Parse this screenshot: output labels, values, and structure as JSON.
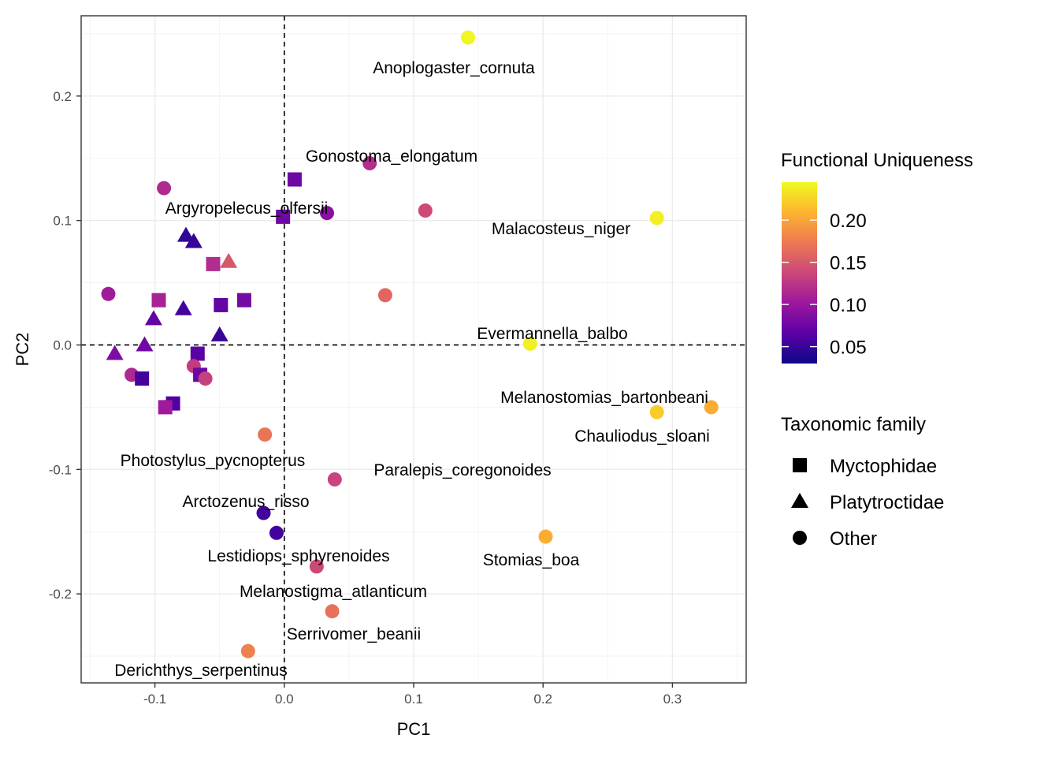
{
  "chart_data": {
    "type": "scatter",
    "xlabel": "PC1",
    "ylabel": "PC2",
    "xlim": [
      -0.157,
      0.357
    ],
    "ylim": [
      -0.2715,
      0.2645
    ],
    "x_ticks": [
      -0.1,
      0.0,
      0.1,
      0.2,
      0.3
    ],
    "x_tick_labels": [
      "-0.1",
      "0.0",
      "0.1",
      "0.2",
      "0.3"
    ],
    "y_ticks": [
      -0.2,
      -0.1,
      0.0,
      0.1,
      0.2
    ],
    "y_tick_labels": [
      "-0.2",
      "-0.1",
      "0.0",
      "0.1",
      "0.2"
    ],
    "grid": true,
    "reference_lines": {
      "x": 0,
      "y": 0,
      "style": "dashed"
    },
    "color_scale": {
      "title": "Functional Uniqueness",
      "palette": "plasma",
      "min": 0.03,
      "max": 0.245,
      "stops": [
        "#0d0887",
        "#5c01a6",
        "#9c179e",
        "#cc4778",
        "#ed7953",
        "#fdb42f",
        "#f0f921"
      ],
      "ticks": [
        0.05,
        0.1,
        0.15,
        0.2
      ],
      "tick_labels": [
        "0.05",
        "0.10",
        "0.15",
        "0.20"
      ]
    },
    "shape_legend": {
      "title": "Taxonomic family",
      "items": [
        {
          "label": "Myctophidae",
          "shape": "square"
        },
        {
          "label": "Platytroctidae",
          "shape": "triangle"
        },
        {
          "label": "Other",
          "shape": "circle"
        }
      ]
    },
    "legend_position": "right",
    "points": [
      {
        "x": 0.142,
        "y": 0.247,
        "u": 0.243,
        "shape": "circle",
        "label": "Anoplogaster_cornuta"
      },
      {
        "x": 0.066,
        "y": 0.146,
        "u": 0.118,
        "shape": "circle",
        "label": "Gonostoma_elongatum"
      },
      {
        "x": 0.008,
        "y": 0.133,
        "u": 0.075,
        "shape": "square"
      },
      {
        "x": -0.093,
        "y": 0.126,
        "u": 0.115,
        "shape": "circle"
      },
      {
        "x": 0.109,
        "y": 0.108,
        "u": 0.14,
        "shape": "circle"
      },
      {
        "x": 0.033,
        "y": 0.106,
        "u": 0.09,
        "shape": "circle",
        "label": "Argyropelecus_olfersii"
      },
      {
        "x": -0.001,
        "y": 0.103,
        "u": 0.076,
        "shape": "square"
      },
      {
        "x": 0.288,
        "y": 0.102,
        "u": 0.24,
        "shape": "circle",
        "label": "Malacosteus_niger"
      },
      {
        "x": -0.076,
        "y": 0.088,
        "u": 0.045,
        "shape": "triangle"
      },
      {
        "x": -0.07,
        "y": 0.083,
        "u": 0.048,
        "shape": "triangle"
      },
      {
        "x": -0.043,
        "y": 0.067,
        "u": 0.15,
        "shape": "triangle"
      },
      {
        "x": -0.055,
        "y": 0.065,
        "u": 0.118,
        "shape": "square"
      },
      {
        "x": -0.136,
        "y": 0.041,
        "u": 0.105,
        "shape": "circle"
      },
      {
        "x": 0.078,
        "y": 0.04,
        "u": 0.16,
        "shape": "circle"
      },
      {
        "x": -0.097,
        "y": 0.036,
        "u": 0.11,
        "shape": "square"
      },
      {
        "x": -0.031,
        "y": 0.036,
        "u": 0.08,
        "shape": "square"
      },
      {
        "x": -0.049,
        "y": 0.032,
        "u": 0.07,
        "shape": "square"
      },
      {
        "x": -0.078,
        "y": 0.029,
        "u": 0.055,
        "shape": "triangle"
      },
      {
        "x": -0.101,
        "y": 0.021,
        "u": 0.07,
        "shape": "triangle"
      },
      {
        "x": -0.05,
        "y": 0.008,
        "u": 0.05,
        "shape": "triangle"
      },
      {
        "x": 0.19,
        "y": 0.001,
        "u": 0.24,
        "shape": "circle",
        "label": "Evermannella_balbo"
      },
      {
        "x": -0.108,
        "y": 0.0,
        "u": 0.078,
        "shape": "triangle"
      },
      {
        "x": -0.067,
        "y": -0.007,
        "u": 0.065,
        "shape": "square"
      },
      {
        "x": -0.131,
        "y": -0.007,
        "u": 0.085,
        "shape": "triangle"
      },
      {
        "x": -0.07,
        "y": -0.017,
        "u": 0.13,
        "shape": "circle"
      },
      {
        "x": -0.065,
        "y": -0.024,
        "u": 0.075,
        "shape": "square"
      },
      {
        "x": -0.118,
        "y": -0.024,
        "u": 0.115,
        "shape": "circle"
      },
      {
        "x": -0.061,
        "y": -0.027,
        "u": 0.132,
        "shape": "circle"
      },
      {
        "x": -0.11,
        "y": -0.027,
        "u": 0.055,
        "shape": "square"
      },
      {
        "x": -0.086,
        "y": -0.047,
        "u": 0.06,
        "shape": "square"
      },
      {
        "x": -0.092,
        "y": -0.05,
        "u": 0.103,
        "shape": "square"
      },
      {
        "x": 0.33,
        "y": -0.05,
        "u": 0.205,
        "shape": "circle",
        "label": "Melanostomias_bartonbeani"
      },
      {
        "x": 0.288,
        "y": -0.054,
        "u": 0.222,
        "shape": "circle",
        "label": "Chauliodus_sloani"
      },
      {
        "x": -0.015,
        "y": -0.072,
        "u": 0.17,
        "shape": "circle",
        "label": "Photostylus_pycnopterus"
      },
      {
        "x": 0.039,
        "y": -0.108,
        "u": 0.135,
        "shape": "circle",
        "label": "Paralepis_coregonoides"
      },
      {
        "x": -0.016,
        "y": -0.135,
        "u": 0.055,
        "shape": "circle",
        "label": "Arctozenus_risso"
      },
      {
        "x": -0.006,
        "y": -0.151,
        "u": 0.055,
        "shape": "circle"
      },
      {
        "x": 0.202,
        "y": -0.154,
        "u": 0.205,
        "shape": "circle",
        "label": "Stomias_boa"
      },
      {
        "x": 0.025,
        "y": -0.178,
        "u": 0.138,
        "shape": "circle",
        "label": "Lestidiops_sphyrenoides"
      },
      {
        "x": 0.037,
        "y": -0.214,
        "u": 0.168,
        "shape": "circle",
        "label": "Melanostigma_atlanticum"
      },
      {
        "x": -0.028,
        "y": -0.246,
        "u": 0.178,
        "shape": "circle",
        "label": "Serrivomer_beanii"
      }
    ],
    "extra_labels": [
      "Derichthys_serpentinus"
    ]
  }
}
